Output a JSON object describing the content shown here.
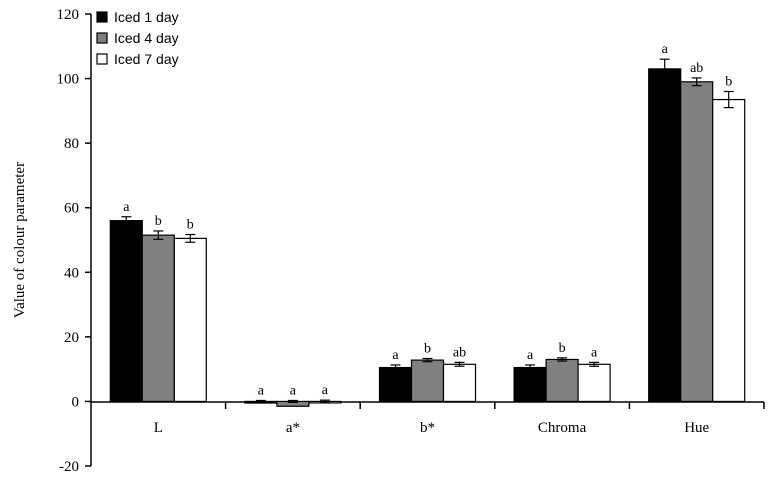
{
  "chart_data": {
    "type": "bar",
    "title": "",
    "xlabel": "",
    "ylabel": "Value of colour parameter",
    "ylim": [
      -20,
      120
    ],
    "yticks": [
      -20,
      0,
      20,
      40,
      60,
      80,
      100,
      120
    ],
    "categories": [
      "L",
      "a*",
      "b*",
      "Chroma",
      "Hue"
    ],
    "grid": false,
    "legend_position": "top-left",
    "series": [
      {
        "name": "Iced 1 day",
        "color": "#000000",
        "values": [
          56,
          -0.5,
          10.5,
          10.5,
          103
        ],
        "errors": [
          1.2,
          0.3,
          0.8,
          0.8,
          3
        ],
        "labels": [
          "a",
          "a",
          "a",
          "a",
          "a"
        ]
      },
      {
        "name": "Iced 4 day",
        "color": "#808080",
        "values": [
          51.5,
          -1.5,
          12.8,
          13,
          99
        ],
        "errors": [
          1.3,
          0.3,
          0.5,
          0.5,
          1.2
        ],
        "labels": [
          "b",
          "a",
          "b",
          "b",
          "ab"
        ]
      },
      {
        "name": "Iced 7 day",
        "color": "#ffffff",
        "values": [
          50.5,
          0,
          11.5,
          11.5,
          93.5
        ],
        "errors": [
          1.2,
          0.4,
          0.6,
          0.6,
          2.5
        ],
        "labels": [
          "b",
          "a",
          "ab",
          "a",
          "b"
        ]
      }
    ]
  }
}
